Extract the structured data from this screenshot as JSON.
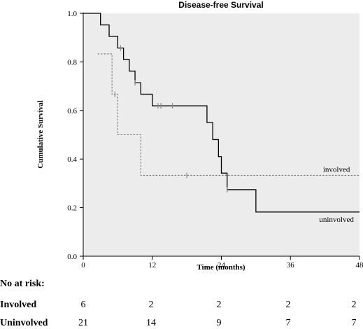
{
  "chart_data": {
    "type": "line",
    "title": "Disease-free Survival",
    "xlabel": "Time (months)",
    "ylabel": "Cumulative Survival",
    "xlim": [
      0,
      48
    ],
    "ylim": [
      0.0,
      1.0
    ],
    "xticks": [
      0,
      12,
      24,
      36,
      48
    ],
    "yticks": [
      0.0,
      0.2,
      0.4,
      0.6,
      0.8,
      1.0
    ],
    "xtick_labels": [
      "0",
      "12",
      "24",
      "36",
      "48"
    ],
    "ytick_labels": [
      "0.0",
      "0.2",
      "0.4",
      "0.6",
      "0.8",
      "1.0"
    ],
    "background": "#ececec",
    "series": [
      {
        "name": "uninvolved",
        "style": "solid",
        "color": "#000000",
        "steps": [
          [
            0,
            1.0
          ],
          [
            3,
            0.952
          ],
          [
            4.5,
            0.905
          ],
          [
            6,
            0.857
          ],
          [
            7,
            0.81
          ],
          [
            8,
            0.762
          ],
          [
            9,
            0.714
          ],
          [
            10,
            0.667
          ],
          [
            12,
            0.619
          ],
          [
            21.5,
            0.55
          ],
          [
            22.5,
            0.48
          ],
          [
            23.5,
            0.41
          ],
          [
            24,
            0.342
          ],
          [
            25,
            0.274
          ],
          [
            30,
            0.182
          ],
          [
            48,
            0.182
          ]
        ],
        "censored": [
          [
            6.5,
            0.857
          ],
          [
            9,
            0.714
          ],
          [
            13,
            0.619
          ],
          [
            13.5,
            0.619
          ],
          [
            15.5,
            0.619
          ],
          [
            25,
            0.274
          ]
        ]
      },
      {
        "name": "involved",
        "style": "dashed",
        "color": "#777777",
        "steps": [
          [
            2.5,
            0.833
          ],
          [
            5,
            0.667
          ],
          [
            6,
            0.5
          ],
          [
            10,
            0.333
          ],
          [
            48,
            0.333
          ]
        ],
        "censored": [
          [
            5.5,
            0.667
          ],
          [
            18,
            0.333
          ]
        ]
      }
    ]
  },
  "at_risk": {
    "heading": "No at risk:",
    "times": [
      0,
      12,
      24,
      36,
      48
    ],
    "rows": [
      {
        "label": "Involved",
        "values": [
          "6",
          "2",
          "2",
          "2",
          "2"
        ]
      },
      {
        "label": "Uninvolved",
        "values": [
          "21",
          "14",
          "9",
          "7",
          "7"
        ]
      }
    ]
  }
}
